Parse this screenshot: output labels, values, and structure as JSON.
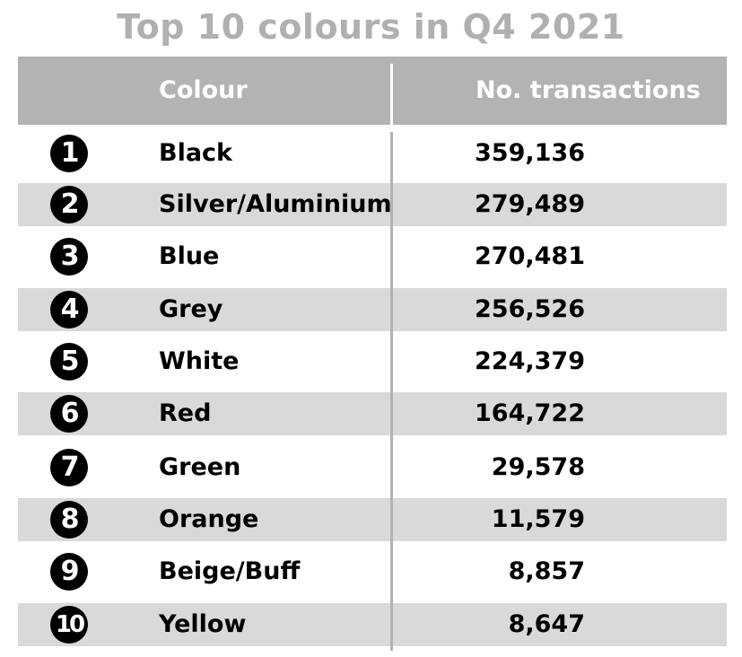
{
  "chart_data": {
    "type": "table",
    "title": "Top 10 colours in Q4 2021",
    "columns": [
      "Colour",
      "No. transactions"
    ],
    "rows": [
      {
        "rank": "1",
        "colour": "Black",
        "transactions": "359,136"
      },
      {
        "rank": "2",
        "colour": "Silver/Aluminium",
        "transactions": "279,489"
      },
      {
        "rank": "3",
        "colour": "Blue",
        "transactions": "270,481"
      },
      {
        "rank": "4",
        "colour": "Grey",
        "transactions": "256,526"
      },
      {
        "rank": "5",
        "colour": "White",
        "transactions": "224,379"
      },
      {
        "rank": "6",
        "colour": "Red",
        "transactions": "164,722"
      },
      {
        "rank": "7",
        "colour": "Green",
        "transactions": "29,578"
      },
      {
        "rank": "8",
        "colour": "Orange",
        "transactions": "11,579"
      },
      {
        "rank": "9",
        "colour": "Beige/Buff",
        "transactions": "8,857"
      },
      {
        "rank": "10",
        "colour": "Yellow",
        "transactions": "8,647"
      }
    ]
  },
  "colors": {
    "title": "#b0b0b0",
    "header_bg": "#b3b3b3",
    "row_shade": "#d9d9d9",
    "rank_badge": "#000000"
  }
}
